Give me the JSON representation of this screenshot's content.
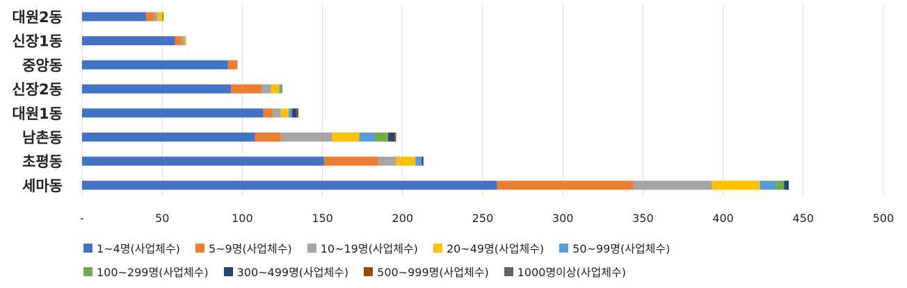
{
  "chart_data": {
    "type": "bar",
    "orientation": "horizontal",
    "stacked": true,
    "categories": [
      "대원2동",
      "신장1동",
      "중앙동",
      "신장2동",
      "대원1동",
      "남촌동",
      "초평동",
      "세마동"
    ],
    "x_ticks": [
      "-",
      "50",
      "100",
      "150",
      "200",
      "250",
      "300",
      "350",
      "400",
      "450",
      "500"
    ],
    "xlim": [
      0,
      500
    ],
    "grid": true,
    "legend_position": "bottom",
    "series": [
      {
        "name": "1~4명(사업체수)",
        "color": "#4472C4",
        "values": [
          40,
          58,
          91,
          93,
          113,
          108,
          151,
          259
        ]
      },
      {
        "name": "5~9명(사업체수)",
        "color": "#ED7D31",
        "values": [
          5,
          4,
          6,
          19,
          6,
          16,
          34,
          85
        ]
      },
      {
        "name": "10~19명(사업체수)",
        "color": "#A5A5A5",
        "values": [
          2,
          2,
          0,
          6,
          5,
          32,
          11,
          49
        ]
      },
      {
        "name": "20~49명(사업체수)",
        "color": "#FFC000",
        "values": [
          3,
          1,
          0,
          5,
          5,
          17,
          12,
          30
        ]
      },
      {
        "name": "50~99명(사업체수)",
        "color": "#5B9BD5",
        "values": [
          0,
          0,
          0,
          1,
          2,
          10,
          4,
          10
        ]
      },
      {
        "name": "100~299명(사업체수)",
        "color": "#70AD47",
        "values": [
          1,
          0,
          0,
          1,
          0,
          8,
          0,
          5
        ]
      },
      {
        "name": "300~499명(사업체수)",
        "color": "#264478",
        "values": [
          0,
          0,
          0,
          0,
          3,
          4,
          1,
          3
        ]
      },
      {
        "name": "500~999명(사업체수)",
        "color": "#9E480E",
        "values": [
          0,
          0,
          0,
          0,
          1,
          1,
          0,
          0
        ]
      },
      {
        "name": "1000명이상(사업체수)",
        "color": "#636363",
        "values": [
          0,
          0,
          0,
          0,
          0,
          0,
          0,
          0
        ]
      }
    ],
    "legend_rows": [
      [
        0,
        1,
        2,
        3,
        4
      ],
      [
        5,
        6,
        7,
        8
      ]
    ]
  }
}
